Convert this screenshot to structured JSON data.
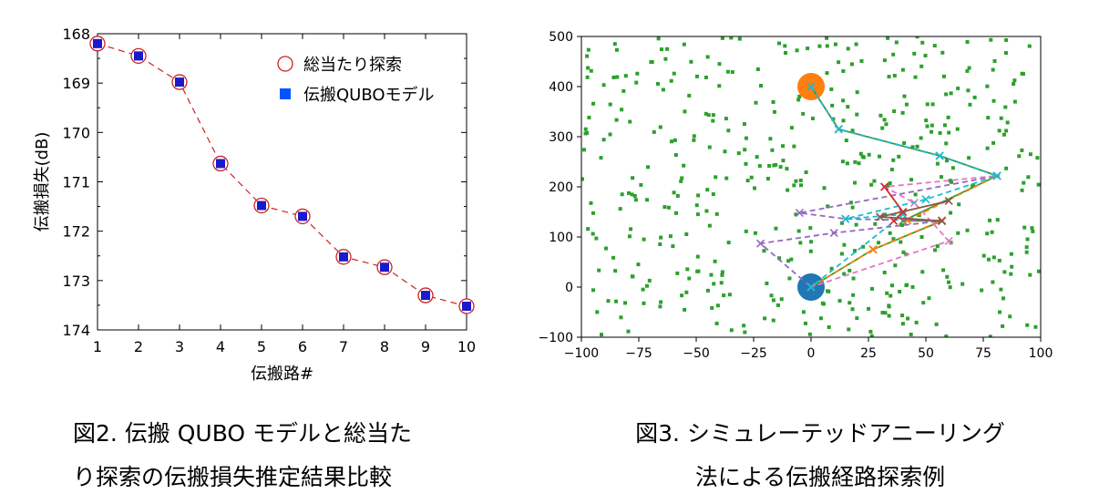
{
  "chart_data": [
    {
      "type": "scatter",
      "xlabel": "伝搬路#",
      "ylabel": "伝搬損失(dB)",
      "xlim": [
        1,
        10
      ],
      "ylim": [
        174,
        168
      ],
      "xticks": [
        1,
        2,
        3,
        4,
        5,
        6,
        7,
        8,
        9,
        10
      ],
      "yticks": [
        168,
        169,
        170,
        171,
        172,
        173,
        174
      ],
      "legend_placement": "top-right",
      "x": [
        1,
        2,
        3,
        4,
        5,
        6,
        7,
        8,
        9,
        10
      ],
      "series": [
        {
          "name": "総当たり探索",
          "marker": "open-circle",
          "line": "dashed",
          "color": "#cc2222",
          "values": [
            168.2,
            168.45,
            168.98,
            170.63,
            171.48,
            171.7,
            172.52,
            172.73,
            173.3,
            173.52
          ]
        },
        {
          "name": "伝搬QUBOモデル",
          "marker": "filled-square",
          "color": "#1a1acc",
          "values": [
            168.2,
            168.45,
            168.98,
            170.63,
            171.48,
            171.7,
            172.52,
            172.73,
            173.3,
            173.52
          ]
        }
      ]
    },
    {
      "type": "scatter",
      "xlim": [
        -100,
        100
      ],
      "ylim": [
        -100,
        500
      ],
      "xticks": [
        -100,
        -75,
        -50,
        -25,
        0,
        25,
        50,
        75,
        100
      ],
      "yticks": [
        -100,
        0,
        100,
        200,
        300,
        400,
        500
      ],
      "tx": {
        "x": 0,
        "y": 400,
        "color": "#ff7f0e"
      },
      "rx": {
        "x": 0,
        "y": 0,
        "color": "#1f77b4"
      },
      "scatter_color": "#2ca02c",
      "paths": [
        {
          "color": "#2ca02c",
          "style": "solid",
          "points": [
            [
              0,
              400
            ],
            [
              12,
              315
            ],
            [
              56,
              262
            ],
            [
              81,
              222
            ],
            [
              40,
              132
            ],
            [
              57,
              132
            ],
            [
              27,
              75
            ],
            [
              0,
              0
            ]
          ]
        },
        {
          "color": "#ff7f0e",
          "style": "dashed",
          "points": [
            [
              0,
              400
            ],
            [
              12,
              315
            ],
            [
              56,
              262
            ],
            [
              81,
              222
            ],
            [
              42,
              133
            ],
            [
              57,
              133
            ],
            [
              27,
              75
            ],
            [
              0,
              0
            ]
          ]
        },
        {
          "color": "#9467bd",
          "style": "dashed",
          "points": [
            [
              0,
              400
            ],
            [
              12,
              315
            ],
            [
              56,
              262
            ],
            [
              81,
              222
            ],
            [
              -5,
              148
            ],
            [
              15,
              136
            ],
            [
              57,
              132
            ],
            [
              10,
              108
            ],
            [
              -22,
              87
            ],
            [
              0,
              0
            ]
          ]
        },
        {
          "color": "#e377c2",
          "style": "dashed",
          "points": [
            [
              0,
              400
            ],
            [
              12,
              315
            ],
            [
              56,
              262
            ],
            [
              81,
              222
            ],
            [
              32,
              200
            ],
            [
              45,
              168
            ],
            [
              60,
              92
            ],
            [
              0,
              0
            ]
          ]
        },
        {
          "color": "#17becf",
          "style": "dashed",
          "points": [
            [
              0,
              400
            ],
            [
              12,
              315
            ],
            [
              56,
              262
            ],
            [
              81,
              222
            ],
            [
              50,
              175
            ],
            [
              15,
              136
            ],
            [
              40,
              145
            ],
            [
              0,
              0
            ]
          ]
        },
        {
          "color": "#d62728",
          "style": "solid",
          "points": [
            [
              32,
              200
            ],
            [
              40,
              150
            ],
            [
              36,
              132
            ]
          ]
        },
        {
          "color": "#8c564b",
          "style": "solid",
          "points": [
            [
              60,
              172
            ],
            [
              30,
              140
            ],
            [
              57,
              132
            ]
          ]
        }
      ]
    }
  ],
  "captions": {
    "fig2_line1": "図2. 伝搬 QUBO モデルと総当た",
    "fig2_line2": "り探索の伝搬損失推定結果比較",
    "fig3_line1": "図3. シミュレーテッドアニーリング",
    "fig3_line2": "法による伝搬経路探索例"
  }
}
